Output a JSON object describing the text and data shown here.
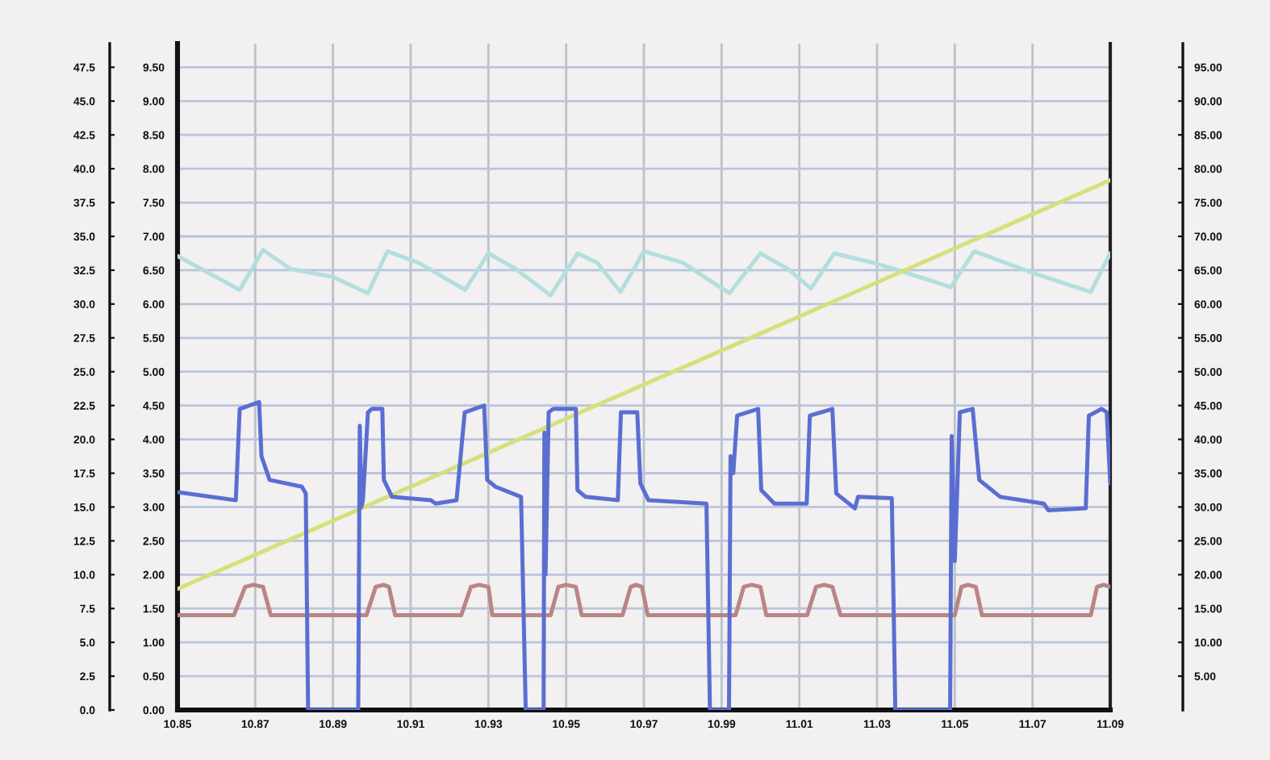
{
  "chart_data": {
    "type": "line",
    "xlim": [
      10.85,
      11.09
    ],
    "xticks": [
      10.85,
      10.87,
      10.89,
      10.91,
      10.93,
      10.95,
      10.97,
      10.99,
      11.01,
      11.03,
      11.05,
      11.07,
      11.09
    ],
    "ylim": [
      0,
      9.85
    ],
    "yticks": [
      {
        "value": 0,
        "label": "0.00"
      },
      {
        "value": 0.5,
        "label": "0.50"
      },
      {
        "value": 1,
        "label": "1.00"
      },
      {
        "value": 1.5,
        "label": "1.50"
      },
      {
        "value": 2,
        "label": "2.00"
      },
      {
        "value": 2.5,
        "label": "2.50"
      },
      {
        "value": 3,
        "label": "3.00"
      },
      {
        "value": 3.5,
        "label": "3.50"
      },
      {
        "value": 4,
        "label": "4.00"
      },
      {
        "value": 4.5,
        "label": "4.50"
      },
      {
        "value": 5,
        "label": "5.00"
      },
      {
        "value": 5.5,
        "label": "5.50"
      },
      {
        "value": 6,
        "label": "6.00"
      },
      {
        "value": 6.5,
        "label": "6.50"
      },
      {
        "value": 7,
        "label": "7.00"
      },
      {
        "value": 7.5,
        "label": "7.50"
      },
      {
        "value": 8,
        "label": "8.00"
      },
      {
        "value": 8.5,
        "label": "8.50"
      },
      {
        "value": 9,
        "label": "9.00"
      },
      {
        "value": 9.5,
        "label": "9.50"
      }
    ],
    "y2lim": [
      0,
      49.25
    ],
    "y2ticks": [
      {
        "value": 0,
        "label": "0.0"
      },
      {
        "value": 2.5,
        "label": "2.5"
      },
      {
        "value": 5,
        "label": "5.0"
      },
      {
        "value": 7.5,
        "label": "7.5"
      },
      {
        "value": 10,
        "label": "10.0"
      },
      {
        "value": 12.5,
        "label": "12.5"
      },
      {
        "value": 15,
        "label": "15.0"
      },
      {
        "value": 17.5,
        "label": "17.5"
      },
      {
        "value": 20,
        "label": "20.0"
      },
      {
        "value": 22.5,
        "label": "22.5"
      },
      {
        "value": 25,
        "label": "25.0"
      },
      {
        "value": 27.5,
        "label": "27.5"
      },
      {
        "value": 30,
        "label": "30.0"
      },
      {
        "value": 32.5,
        "label": "32.5"
      },
      {
        "value": 35,
        "label": "35.0"
      },
      {
        "value": 37.5,
        "label": "37.5"
      },
      {
        "value": 40,
        "label": "40.0"
      },
      {
        "value": 42.5,
        "label": "42.5"
      },
      {
        "value": 45,
        "label": "45.0"
      },
      {
        "value": 47.5,
        "label": "47.5"
      }
    ],
    "y3lim": [
      0,
      98.5
    ],
    "y3ticks": [
      {
        "value": 5,
        "label": "5.00"
      },
      {
        "value": 10,
        "label": "10.00"
      },
      {
        "value": 15,
        "label": "15.00"
      },
      {
        "value": 20,
        "label": "20.00"
      },
      {
        "value": 25,
        "label": "25.00"
      },
      {
        "value": 30,
        "label": "30.00"
      },
      {
        "value": 35,
        "label": "35.00"
      },
      {
        "value": 40,
        "label": "40.00"
      },
      {
        "value": 45,
        "label": "45.00"
      },
      {
        "value": 50,
        "label": "50.00"
      },
      {
        "value": 55,
        "label": "55.00"
      },
      {
        "value": 60,
        "label": "60.00"
      },
      {
        "value": 65,
        "label": "65.00"
      },
      {
        "value": 70,
        "label": "70.00"
      },
      {
        "value": 75,
        "label": "75.00"
      },
      {
        "value": 80,
        "label": "80.00"
      },
      {
        "value": 85,
        "label": "85.00"
      },
      {
        "value": 90,
        "label": "90.00"
      },
      {
        "value": 95,
        "label": "95.00"
      }
    ],
    "grid": true,
    "series": [
      {
        "color": "#b3dede",
        "x": [
          10.85,
          10.866,
          10.872,
          10.879,
          10.89,
          10.899,
          10.904,
          10.912,
          10.924,
          10.93,
          10.937,
          10.946,
          10.953,
          10.958,
          10.964,
          10.97,
          10.98,
          10.992,
          11.0,
          11.007,
          11.013,
          11.019,
          11.029,
          11.036,
          11.049,
          11.055,
          11.063,
          11.071,
          11.085,
          11.09
        ],
        "values": [
          6.71,
          6.21,
          6.8,
          6.52,
          6.4,
          6.16,
          6.78,
          6.61,
          6.21,
          6.75,
          6.52,
          6.13,
          6.75,
          6.61,
          6.18,
          6.78,
          6.61,
          6.16,
          6.75,
          6.52,
          6.23,
          6.75,
          6.61,
          6.49,
          6.25,
          6.78,
          6.61,
          6.44,
          6.18,
          6.75
        ]
      },
      {
        "color": "#d6e07a",
        "x": [
          10.85,
          11.09
        ],
        "values": [
          1.79,
          7.83
        ]
      },
      {
        "color": "#b98585",
        "x": [
          10.85,
          10.8645,
          10.8674,
          10.8695,
          10.872,
          10.874,
          10.8986,
          10.901,
          10.903,
          10.9044,
          10.906,
          10.923,
          10.9255,
          10.9276,
          10.93,
          10.931,
          10.946,
          10.948,
          10.95,
          10.9525,
          10.954,
          10.9645,
          10.9666,
          10.968,
          10.9695,
          10.971,
          10.9936,
          10.9957,
          10.9977,
          11.0,
          11.0015,
          11.012,
          11.0143,
          11.0164,
          11.0185,
          11.0206,
          11.05,
          11.0517,
          11.0534,
          11.0554,
          11.057,
          11.085,
          11.0866,
          11.0883,
          11.09
        ],
        "values": [
          1.4,
          1.4,
          1.82,
          1.85,
          1.82,
          1.4,
          1.4,
          1.82,
          1.85,
          1.82,
          1.4,
          1.4,
          1.82,
          1.85,
          1.82,
          1.4,
          1.4,
          1.82,
          1.85,
          1.82,
          1.4,
          1.4,
          1.82,
          1.85,
          1.82,
          1.4,
          1.4,
          1.82,
          1.85,
          1.82,
          1.4,
          1.4,
          1.82,
          1.85,
          1.82,
          1.4,
          1.4,
          1.82,
          1.85,
          1.82,
          1.4,
          1.4,
          1.82,
          1.85,
          1.82
        ]
      },
      {
        "color": "#5a6ed2",
        "x": [
          10.85,
          10.865,
          10.866,
          10.871,
          10.8716,
          10.8737,
          10.882,
          10.883,
          10.8836,
          10.8965,
          10.8969,
          10.8973,
          10.8977,
          10.899,
          10.9,
          10.9027,
          10.9031,
          10.9052,
          10.9152,
          10.9164,
          10.9218,
          10.9239,
          10.9289,
          10.9297,
          10.9318,
          10.9384,
          10.9396,
          10.9442,
          10.9444,
          10.9447,
          10.9455,
          10.9467,
          10.9525,
          10.9529,
          10.955,
          10.9633,
          10.9641,
          10.9683,
          10.9691,
          10.9712,
          10.9861,
          10.987,
          10.9919,
          10.9923,
          10.993,
          10.994,
          10.9994,
          11.0002,
          11.0036,
          11.0119,
          11.0127,
          11.0185,
          11.0195,
          11.0243,
          11.0251,
          11.0338,
          11.0347,
          11.0488,
          11.0492,
          11.05,
          11.0513,
          11.0546,
          11.0563,
          11.0617,
          11.0729,
          11.0741,
          11.0837,
          11.0845,
          11.0878,
          11.0891,
          11.09
        ],
        "values": [
          3.22,
          3.1,
          4.45,
          4.55,
          3.75,
          3.4,
          3.3,
          3.2,
          0,
          0,
          4.2,
          3.0,
          3.1,
          4.4,
          4.45,
          4.45,
          3.4,
          3.15,
          3.1,
          3.05,
          3.1,
          4.4,
          4.5,
          3.4,
          3.3,
          3.15,
          0,
          0,
          4.1,
          2.0,
          4.4,
          4.45,
          4.45,
          3.25,
          3.15,
          3.1,
          4.4,
          4.4,
          3.35,
          3.1,
          3.05,
          0,
          0,
          3.75,
          3.5,
          4.35,
          4.45,
          3.25,
          3.05,
          3.05,
          4.35,
          4.45,
          3.2,
          2.98,
          3.15,
          3.13,
          0,
          0,
          4.05,
          2.2,
          4.4,
          4.45,
          3.4,
          3.15,
          3.05,
          2.95,
          2.98,
          4.35,
          4.45,
          4.4,
          3.35
        ]
      }
    ]
  }
}
